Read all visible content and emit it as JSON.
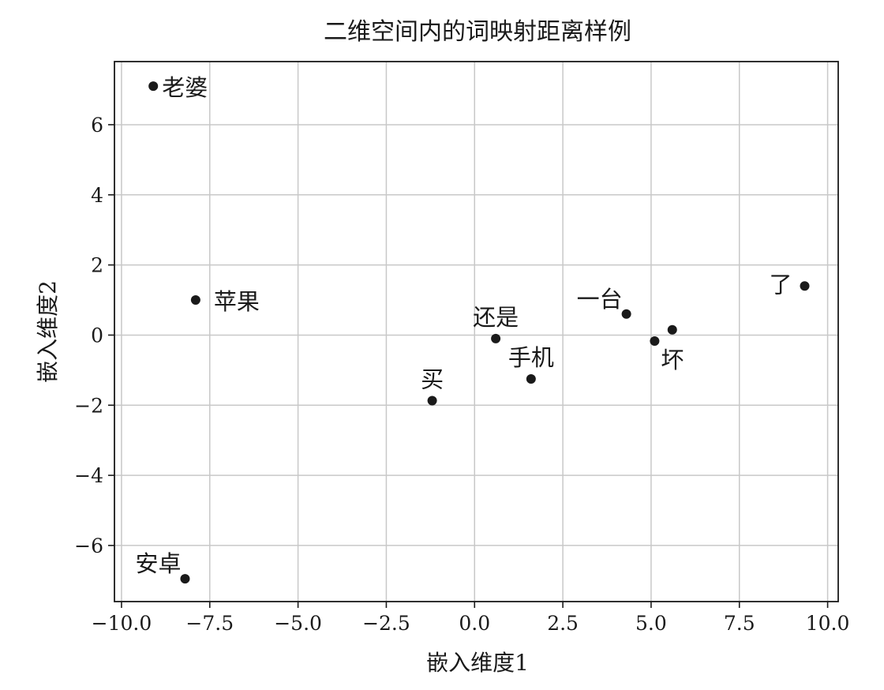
{
  "chart_data": {
    "type": "scatter",
    "title": "二维空间内的词映射距离样例",
    "xlabel": "嵌入维度1",
    "ylabel": "嵌入维度2",
    "xlim": [
      -10.2,
      10.3
    ],
    "ylim": [
      -7.6,
      7.8
    ],
    "xticks": [
      -10.0,
      -7.5,
      -5.0,
      -2.5,
      0.0,
      2.5,
      5.0,
      7.5,
      10.0
    ],
    "xtick_labels": [
      "−10.0",
      "−7.5",
      "−5.0",
      "−2.5",
      "0.0",
      "2.5",
      "5.0",
      "7.5",
      "10.0"
    ],
    "yticks": [
      -6,
      -4,
      -2,
      0,
      2,
      4,
      6
    ],
    "ytick_labels": [
      "−6",
      "−4",
      "−2",
      "0",
      "2",
      "4",
      "6"
    ],
    "grid": true,
    "marker_color": "#1a1a1a",
    "points": [
      {
        "label": "老婆",
        "x": -9.1,
        "y": 7.1,
        "label_pos": "right"
      },
      {
        "label": "苹果",
        "x": -7.9,
        "y": 1.0,
        "label_pos": "right-far"
      },
      {
        "label": "安卓",
        "x": -8.2,
        "y": -6.95,
        "label_pos": "upper-left"
      },
      {
        "label": "还是",
        "x": 0.6,
        "y": -0.1,
        "label_pos": "above"
      },
      {
        "label": "手机",
        "x": 1.6,
        "y": -1.25,
        "label_pos": "above"
      },
      {
        "label": "买",
        "x": -1.2,
        "y": -1.87,
        "label_pos": "above"
      },
      {
        "label": "一台",
        "x": 4.3,
        "y": 0.6,
        "label_pos": "upper-left"
      },
      {
        "label": "",
        "x": 5.6,
        "y": 0.15,
        "label_pos": "none"
      },
      {
        "label": "坏",
        "x": 5.1,
        "y": -0.17,
        "label_pos": "below-right"
      },
      {
        "label": "了",
        "x": 9.35,
        "y": 1.4,
        "label_pos": "left"
      }
    ]
  }
}
